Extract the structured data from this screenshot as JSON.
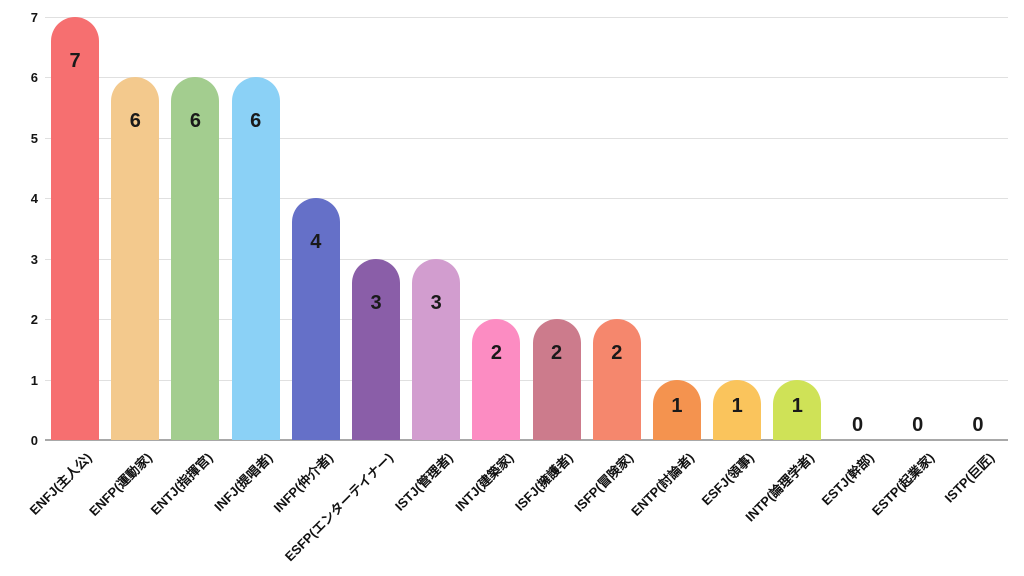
{
  "chart_data": {
    "type": "bar",
    "title": "",
    "xlabel": "",
    "ylabel": "",
    "categories": [
      "ENFJ(主人公)",
      "ENFP(運動家)",
      "ENTJ(指揮官)",
      "INFJ(提唱者)",
      "INFP(仲介者)",
      "ESFP(エンターテイナー)",
      "ISTJ(管理者)",
      "INTJ(建築家)",
      "ISFJ(擁護者)",
      "ISFP(冒険家)",
      "ENTP(討論者)",
      "ESFJ(領事)",
      "INTP(論理学者)",
      "ESTJ(幹部)",
      "ESTP(起業家)",
      "ISTP(巨匠)"
    ],
    "values": [
      7,
      6,
      6,
      6,
      4,
      3,
      3,
      2,
      2,
      2,
      1,
      1,
      1,
      0,
      0,
      0
    ],
    "data_labels": [
      "7",
      "6",
      "6",
      "6",
      "4",
      "3",
      "3",
      "2",
      "2",
      "2",
      "1",
      "1",
      "1",
      "0",
      "0",
      "0"
    ],
    "bar_colors": [
      "#F66F70",
      "#F3C98D",
      "#A3CD8F",
      "#8BD1F6",
      "#6570C8",
      "#8A5EA8",
      "#D29DCF",
      "#FC8CC2",
      "#CC7B8C",
      "#F5876D",
      "#F4934F",
      "#FAC45C",
      "#CFE257",
      null,
      null,
      null
    ],
    "ylim": [
      0,
      7
    ],
    "yticks": [
      "0",
      "1",
      "2",
      "3",
      "4",
      "5",
      "6",
      "7"
    ],
    "grid": true,
    "legend_position": "none"
  },
  "style_colors": {
    "background": "#ffffff",
    "gridline": "#e0e0e0",
    "axis_line": "#a8a8a8",
    "text": "#111111"
  }
}
